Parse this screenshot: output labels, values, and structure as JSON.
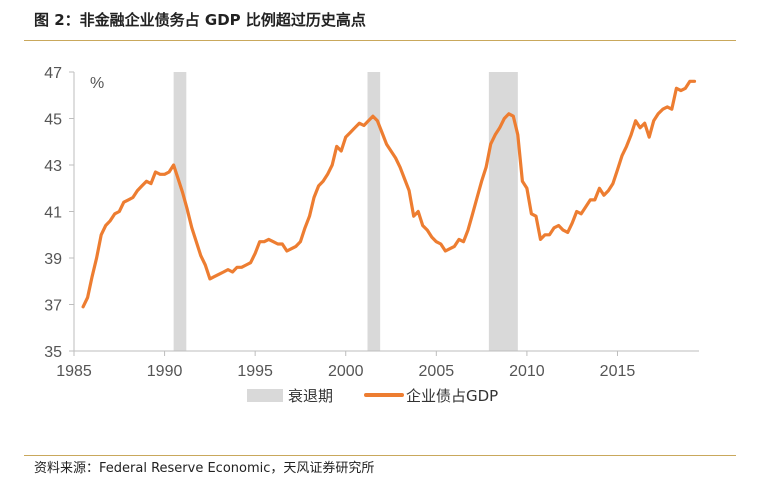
{
  "figure": {
    "title": "图 2：非金融企业债务占 GDP 比例超过历史高点",
    "source": "资料来源：Federal Reserve Economic，天风证券研究所"
  },
  "chart_data": {
    "type": "line",
    "title": "非金融企业债务占 GDP 比例超过历史高点",
    "unit_label": "%",
    "xlabel": "",
    "ylabel": "",
    "xlim": [
      1985,
      2019.5
    ],
    "ylim": [
      35,
      47
    ],
    "x_ticks": [
      1985,
      1990,
      1995,
      2000,
      2005,
      2010,
      2015
    ],
    "y_ticks": [
      35,
      37,
      39,
      41,
      43,
      45,
      47
    ],
    "grid": false,
    "legend_position": "bottom",
    "recessions": {
      "name": "衰退期",
      "periods": [
        [
          1990.5,
          1991.2
        ],
        [
          2001.2,
          2001.9
        ],
        [
          2007.9,
          2009.5
        ]
      ]
    },
    "series": [
      {
        "name": "企业债占GDP",
        "color": "#ED7D31",
        "points": [
          [
            1985.5,
            36.9
          ],
          [
            1985.75,
            37.3
          ],
          [
            1986.0,
            38.2
          ],
          [
            1986.25,
            39.0
          ],
          [
            1986.5,
            40.0
          ],
          [
            1986.75,
            40.4
          ],
          [
            1987.0,
            40.6
          ],
          [
            1987.25,
            40.9
          ],
          [
            1987.5,
            41.0
          ],
          [
            1987.75,
            41.4
          ],
          [
            1988.0,
            41.5
          ],
          [
            1988.25,
            41.6
          ],
          [
            1988.5,
            41.9
          ],
          [
            1988.75,
            42.1
          ],
          [
            1989.0,
            42.3
          ],
          [
            1989.25,
            42.2
          ],
          [
            1989.5,
            42.7
          ],
          [
            1989.75,
            42.6
          ],
          [
            1990.0,
            42.6
          ],
          [
            1990.25,
            42.7
          ],
          [
            1990.5,
            43.0
          ],
          [
            1990.75,
            42.4
          ],
          [
            1991.0,
            41.8
          ],
          [
            1991.25,
            41.1
          ],
          [
            1991.5,
            40.3
          ],
          [
            1991.75,
            39.7
          ],
          [
            1992.0,
            39.1
          ],
          [
            1992.25,
            38.7
          ],
          [
            1992.5,
            38.1
          ],
          [
            1992.75,
            38.2
          ],
          [
            1993.0,
            38.3
          ],
          [
            1993.25,
            38.4
          ],
          [
            1993.5,
            38.5
          ],
          [
            1993.75,
            38.4
          ],
          [
            1994.0,
            38.6
          ],
          [
            1994.25,
            38.6
          ],
          [
            1994.5,
            38.7
          ],
          [
            1994.75,
            38.8
          ],
          [
            1995.0,
            39.2
          ],
          [
            1995.25,
            39.7
          ],
          [
            1995.5,
            39.7
          ],
          [
            1995.75,
            39.8
          ],
          [
            1996.0,
            39.7
          ],
          [
            1996.25,
            39.6
          ],
          [
            1996.5,
            39.6
          ],
          [
            1996.75,
            39.3
          ],
          [
            1997.0,
            39.4
          ],
          [
            1997.25,
            39.5
          ],
          [
            1997.5,
            39.7
          ],
          [
            1997.75,
            40.3
          ],
          [
            1998.0,
            40.8
          ],
          [
            1998.25,
            41.6
          ],
          [
            1998.5,
            42.1
          ],
          [
            1998.75,
            42.3
          ],
          [
            1999.0,
            42.6
          ],
          [
            1999.25,
            43.0
          ],
          [
            1999.5,
            43.8
          ],
          [
            1999.75,
            43.6
          ],
          [
            2000.0,
            44.2
          ],
          [
            2000.25,
            44.4
          ],
          [
            2000.5,
            44.6
          ],
          [
            2000.75,
            44.8
          ],
          [
            2001.0,
            44.7
          ],
          [
            2001.25,
            44.9
          ],
          [
            2001.5,
            45.1
          ],
          [
            2001.75,
            44.9
          ],
          [
            2002.0,
            44.4
          ],
          [
            2002.25,
            43.9
          ],
          [
            2002.5,
            43.6
          ],
          [
            2002.75,
            43.3
          ],
          [
            2003.0,
            42.9
          ],
          [
            2003.25,
            42.4
          ],
          [
            2003.5,
            41.9
          ],
          [
            2003.75,
            40.8
          ],
          [
            2004.0,
            41.0
          ],
          [
            2004.25,
            40.4
          ],
          [
            2004.5,
            40.2
          ],
          [
            2004.75,
            39.9
          ],
          [
            2005.0,
            39.7
          ],
          [
            2005.25,
            39.6
          ],
          [
            2005.5,
            39.3
          ],
          [
            2005.75,
            39.4
          ],
          [
            2006.0,
            39.5
          ],
          [
            2006.25,
            39.8
          ],
          [
            2006.5,
            39.7
          ],
          [
            2006.75,
            40.2
          ],
          [
            2007.0,
            40.9
          ],
          [
            2007.25,
            41.6
          ],
          [
            2007.5,
            42.3
          ],
          [
            2007.75,
            42.9
          ],
          [
            2008.0,
            43.9
          ],
          [
            2008.25,
            44.3
          ],
          [
            2008.5,
            44.6
          ],
          [
            2008.75,
            45.0
          ],
          [
            2009.0,
            45.2
          ],
          [
            2009.25,
            45.1
          ],
          [
            2009.5,
            44.3
          ],
          [
            2009.75,
            42.3
          ],
          [
            2010.0,
            42.0
          ],
          [
            2010.25,
            40.9
          ],
          [
            2010.5,
            40.8
          ],
          [
            2010.75,
            39.8
          ],
          [
            2011.0,
            40.0
          ],
          [
            2011.25,
            40.0
          ],
          [
            2011.5,
            40.3
          ],
          [
            2011.75,
            40.4
          ],
          [
            2012.0,
            40.2
          ],
          [
            2012.25,
            40.1
          ],
          [
            2012.5,
            40.5
          ],
          [
            2012.75,
            41.0
          ],
          [
            2013.0,
            40.9
          ],
          [
            2013.25,
            41.2
          ],
          [
            2013.5,
            41.5
          ],
          [
            2013.75,
            41.5
          ],
          [
            2014.0,
            42.0
          ],
          [
            2014.25,
            41.7
          ],
          [
            2014.5,
            41.9
          ],
          [
            2014.75,
            42.2
          ],
          [
            2015.0,
            42.8
          ],
          [
            2015.25,
            43.4
          ],
          [
            2015.5,
            43.8
          ],
          [
            2015.75,
            44.3
          ],
          [
            2016.0,
            44.9
          ],
          [
            2016.25,
            44.6
          ],
          [
            2016.5,
            44.8
          ],
          [
            2016.75,
            44.2
          ],
          [
            2017.0,
            44.9
          ],
          [
            2017.25,
            45.2
          ],
          [
            2017.5,
            45.4
          ],
          [
            2017.75,
            45.5
          ],
          [
            2018.0,
            45.4
          ],
          [
            2018.25,
            46.3
          ],
          [
            2018.5,
            46.2
          ],
          [
            2018.75,
            46.3
          ],
          [
            2019.0,
            46.6
          ],
          [
            2019.25,
            46.6
          ]
        ]
      }
    ]
  }
}
